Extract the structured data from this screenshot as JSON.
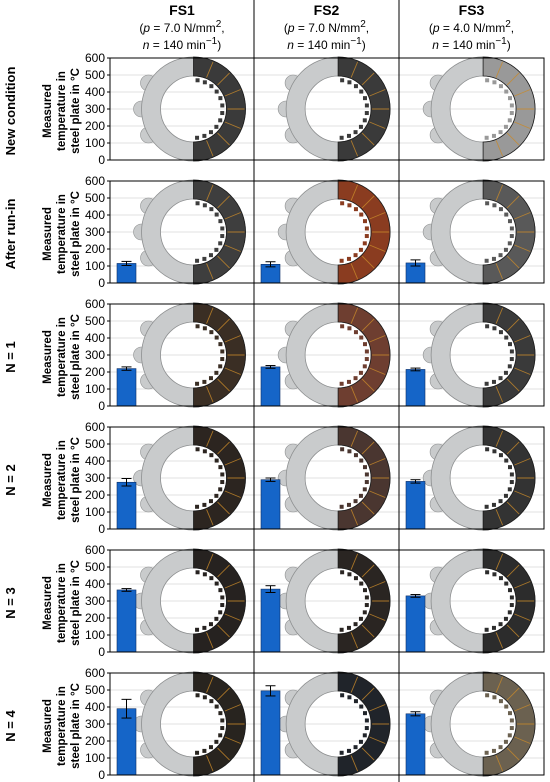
{
  "columns": [
    {
      "title": "FS1",
      "p_label": "p",
      "p_value": " = 7.0 N/mm",
      "p_sup": "2",
      "n_label": "n",
      "n_value": " = 140 min",
      "n_sup": "−1"
    },
    {
      "title": "FS2",
      "p_label": "p",
      "p_value": " = 7.0 N/mm",
      "p_sup": "2",
      "n_label": "n",
      "n_value": " = 140 min",
      "n_sup": "−1"
    },
    {
      "title": "FS3",
      "p_label": "p",
      "p_value": " = 4.0 N/mm",
      "p_sup": "2",
      "n_label": "n",
      "n_value": " = 140 min",
      "n_sup": "−1"
    }
  ],
  "rows": [
    "New condition",
    "After run-in",
    "N = 1",
    "N = 2",
    "N = 3",
    "N = 4"
  ],
  "colors": {
    "bar": "#1565c8",
    "bar_edge": "#0d2f66",
    "grid": "#d9d9d9",
    "steel": "#c9cbcc",
    "border": "#000000"
  },
  "chart_data": {
    "type": "bar",
    "ylabel": "Measured temperature in steel plate in °C",
    "ylim": [
      0,
      600
    ],
    "yticks": [
      0,
      100,
      200,
      300,
      400,
      500,
      600
    ],
    "grid": true,
    "series": [
      {
        "name": "FS1",
        "values": [
          null,
          115,
          220,
          275,
          365,
          390
        ],
        "errors": [
          null,
          12,
          10,
          22,
          8,
          55
        ]
      },
      {
        "name": "FS2",
        "values": [
          null,
          110,
          230,
          290,
          370,
          495
        ],
        "errors": [
          null,
          15,
          8,
          10,
          20,
          30
        ]
      },
      {
        "name": "FS3",
        "values": [
          null,
          118,
          215,
          280,
          330,
          360
        ],
        "errors": [
          null,
          18,
          8,
          10,
          8,
          12
        ]
      }
    ],
    "friction_lining": [
      [
        "#3a3a3a",
        "#3a3a3a",
        "#999999"
      ],
      [
        "#3e3e3e",
        "#8a3c20",
        "#595959"
      ],
      [
        "#3a2e24",
        "#6e3e30",
        "#3a3a3a"
      ],
      [
        "#2c2520",
        "#4a3630",
        "#333333"
      ],
      [
        "#262220",
        "#2a2522",
        "#2c2c2c"
      ],
      [
        "#28241f",
        "#20242a",
        "#6b6150"
      ]
    ]
  }
}
